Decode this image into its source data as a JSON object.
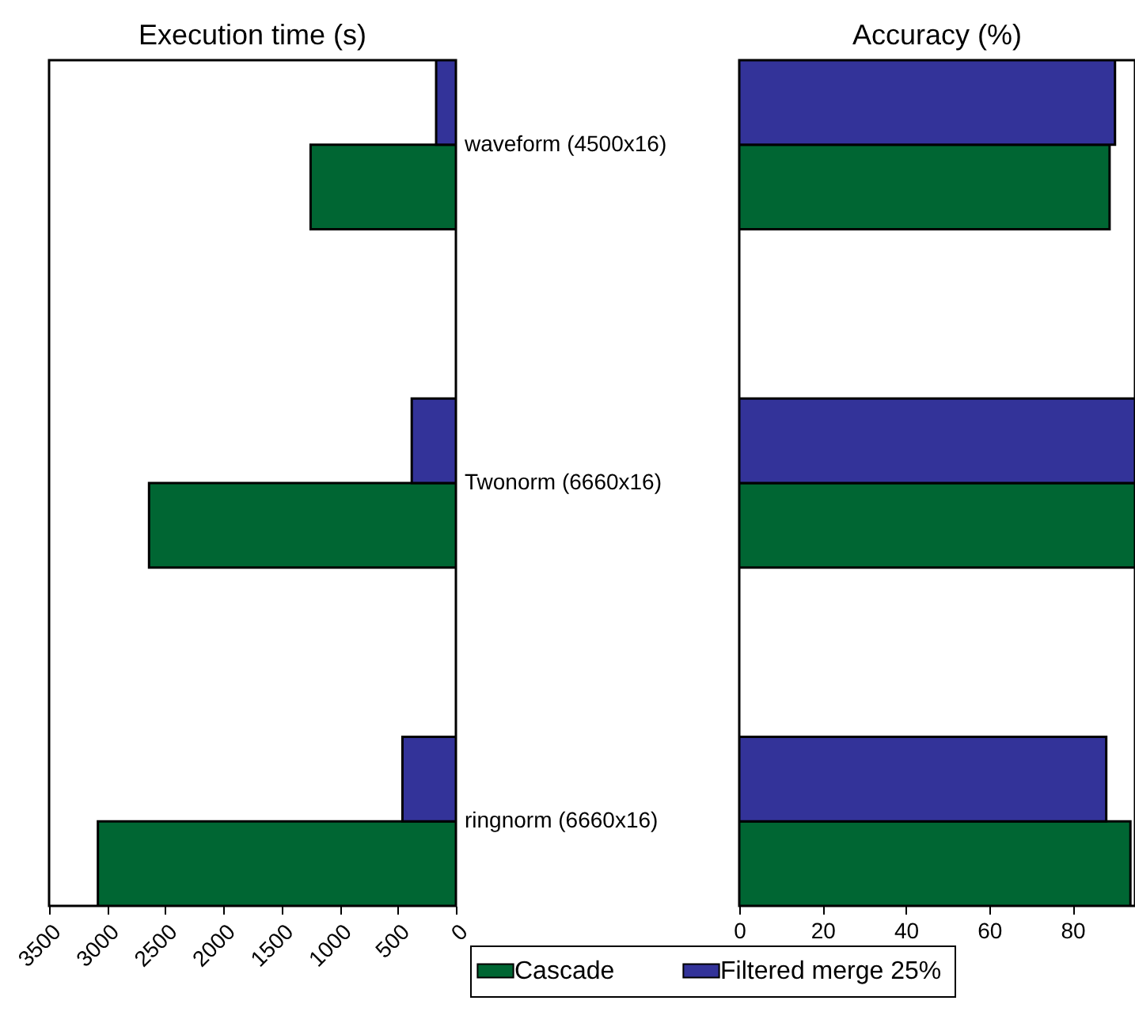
{
  "chart_data": [
    {
      "type": "bar",
      "title": "Execution time (s)",
      "orientation": "horizontal",
      "categories": [
        "waveform (4500x16)",
        "Twonorm (6660x16)",
        "ringnorm (6660x16)"
      ],
      "series": [
        {
          "name": "Cascade",
          "color": "#006633",
          "values": [
            1250,
            2640,
            3080
          ]
        },
        {
          "name": "Filtered merge 25%",
          "color": "#333399",
          "values": [
            170,
            380,
            460
          ]
        }
      ],
      "xlim": [
        3500,
        0
      ],
      "xticks": [
        3500,
        3000,
        2500,
        2000,
        1500,
        1000,
        500,
        0
      ],
      "legend": "bottom right"
    },
    {
      "type": "bar",
      "title": "Accuracy (%)",
      "orientation": "horizontal",
      "categories": [
        null,
        null,
        null
      ],
      "series": [
        {
          "color": "#006633",
          "values": [
            88.9,
            95,
            93.9
          ]
        },
        {
          "color": "#333399",
          "values": [
            90.2,
            95,
            88.1
          ]
        }
      ],
      "xlim": [
        0,
        95
      ],
      "xticks": [
        0,
        20,
        40,
        60,
        80
      ],
      "tick_labels": "x"
    }
  ]
}
